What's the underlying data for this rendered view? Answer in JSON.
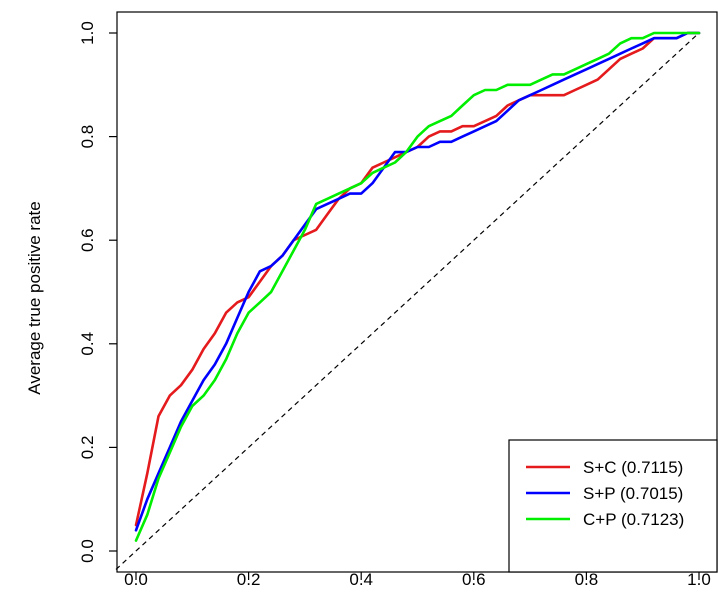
{
  "chart_data": {
    "type": "line",
    "ylabel": "Average true positive rate",
    "xlabel": "",
    "xlim": [
      0,
      1
    ],
    "ylim": [
      0,
      1
    ],
    "x_ticks": [
      0.0,
      0.2,
      0.4,
      0.6,
      0.8,
      1.0
    ],
    "y_ticks": [
      0.0,
      0.2,
      0.4,
      0.6,
      0.8,
      1.0
    ],
    "x_tick_labels": [
      "0.0",
      "0.2",
      "0.4",
      "0.6",
      "0.8",
      "1.0"
    ],
    "y_tick_labels": [
      "0.0",
      "0.2",
      "0.4",
      "0.6",
      "0.8",
      "1.0"
    ],
    "grid": false,
    "legend_position": "bottom-right",
    "reference_line": {
      "style": "dashed",
      "color": "#000000",
      "points": [
        [
          0,
          0
        ],
        [
          1,
          1
        ]
      ]
    },
    "series": [
      {
        "name": "S+C (0.7115)",
        "color": "#e41a1c",
        "points": [
          [
            0.0,
            0.05
          ],
          [
            0.02,
            0.15
          ],
          [
            0.04,
            0.26
          ],
          [
            0.06,
            0.3
          ],
          [
            0.08,
            0.32
          ],
          [
            0.1,
            0.35
          ],
          [
            0.12,
            0.39
          ],
          [
            0.14,
            0.42
          ],
          [
            0.16,
            0.46
          ],
          [
            0.18,
            0.48
          ],
          [
            0.2,
            0.49
          ],
          [
            0.22,
            0.52
          ],
          [
            0.24,
            0.55
          ],
          [
            0.26,
            0.57
          ],
          [
            0.28,
            0.6
          ],
          [
            0.3,
            0.61
          ],
          [
            0.32,
            0.62
          ],
          [
            0.34,
            0.65
          ],
          [
            0.36,
            0.68
          ],
          [
            0.38,
            0.7
          ],
          [
            0.4,
            0.71
          ],
          [
            0.42,
            0.74
          ],
          [
            0.44,
            0.75
          ],
          [
            0.46,
            0.76
          ],
          [
            0.48,
            0.77
          ],
          [
            0.5,
            0.78
          ],
          [
            0.52,
            0.8
          ],
          [
            0.54,
            0.81
          ],
          [
            0.56,
            0.81
          ],
          [
            0.58,
            0.82
          ],
          [
            0.6,
            0.82
          ],
          [
            0.62,
            0.83
          ],
          [
            0.64,
            0.84
          ],
          [
            0.66,
            0.86
          ],
          [
            0.68,
            0.87
          ],
          [
            0.7,
            0.88
          ],
          [
            0.72,
            0.88
          ],
          [
            0.74,
            0.88
          ],
          [
            0.76,
            0.88
          ],
          [
            0.78,
            0.89
          ],
          [
            0.8,
            0.9
          ],
          [
            0.82,
            0.91
          ],
          [
            0.84,
            0.93
          ],
          [
            0.86,
            0.95
          ],
          [
            0.88,
            0.96
          ],
          [
            0.9,
            0.97
          ],
          [
            0.92,
            0.99
          ],
          [
            0.94,
            0.99
          ],
          [
            0.96,
            0.99
          ],
          [
            0.98,
            1.0
          ],
          [
            1.0,
            1.0
          ]
        ]
      },
      {
        "name": "S+P (0.7015)",
        "color": "#0000ff",
        "points": [
          [
            0.0,
            0.04
          ],
          [
            0.02,
            0.1
          ],
          [
            0.04,
            0.15
          ],
          [
            0.06,
            0.2
          ],
          [
            0.08,
            0.25
          ],
          [
            0.1,
            0.29
          ],
          [
            0.12,
            0.33
          ],
          [
            0.14,
            0.36
          ],
          [
            0.16,
            0.4
          ],
          [
            0.18,
            0.45
          ],
          [
            0.2,
            0.5
          ],
          [
            0.22,
            0.54
          ],
          [
            0.24,
            0.55
          ],
          [
            0.26,
            0.57
          ],
          [
            0.28,
            0.6
          ],
          [
            0.3,
            0.63
          ],
          [
            0.32,
            0.66
          ],
          [
            0.34,
            0.67
          ],
          [
            0.36,
            0.68
          ],
          [
            0.38,
            0.69
          ],
          [
            0.4,
            0.69
          ],
          [
            0.42,
            0.71
          ],
          [
            0.44,
            0.74
          ],
          [
            0.46,
            0.77
          ],
          [
            0.48,
            0.77
          ],
          [
            0.5,
            0.78
          ],
          [
            0.52,
            0.78
          ],
          [
            0.54,
            0.79
          ],
          [
            0.56,
            0.79
          ],
          [
            0.58,
            0.8
          ],
          [
            0.6,
            0.81
          ],
          [
            0.62,
            0.82
          ],
          [
            0.64,
            0.83
          ],
          [
            0.66,
            0.85
          ],
          [
            0.68,
            0.87
          ],
          [
            0.7,
            0.88
          ],
          [
            0.72,
            0.89
          ],
          [
            0.74,
            0.9
          ],
          [
            0.76,
            0.91
          ],
          [
            0.78,
            0.92
          ],
          [
            0.8,
            0.93
          ],
          [
            0.82,
            0.94
          ],
          [
            0.84,
            0.95
          ],
          [
            0.86,
            0.96
          ],
          [
            0.88,
            0.97
          ],
          [
            0.9,
            0.98
          ],
          [
            0.92,
            0.99
          ],
          [
            0.94,
            0.99
          ],
          [
            0.96,
            0.99
          ],
          [
            0.98,
            1.0
          ],
          [
            1.0,
            1.0
          ]
        ]
      },
      {
        "name": "C+P (0.7123)",
        "color": "#00ee00",
        "points": [
          [
            0.0,
            0.02
          ],
          [
            0.02,
            0.07
          ],
          [
            0.04,
            0.14
          ],
          [
            0.06,
            0.19
          ],
          [
            0.08,
            0.24
          ],
          [
            0.1,
            0.28
          ],
          [
            0.12,
            0.3
          ],
          [
            0.14,
            0.33
          ],
          [
            0.16,
            0.37
          ],
          [
            0.18,
            0.42
          ],
          [
            0.2,
            0.46
          ],
          [
            0.22,
            0.48
          ],
          [
            0.24,
            0.5
          ],
          [
            0.26,
            0.54
          ],
          [
            0.28,
            0.58
          ],
          [
            0.3,
            0.62
          ],
          [
            0.32,
            0.67
          ],
          [
            0.34,
            0.68
          ],
          [
            0.36,
            0.69
          ],
          [
            0.38,
            0.7
          ],
          [
            0.4,
            0.71
          ],
          [
            0.42,
            0.73
          ],
          [
            0.44,
            0.74
          ],
          [
            0.46,
            0.75
          ],
          [
            0.48,
            0.77
          ],
          [
            0.5,
            0.8
          ],
          [
            0.52,
            0.82
          ],
          [
            0.54,
            0.83
          ],
          [
            0.56,
            0.84
          ],
          [
            0.58,
            0.86
          ],
          [
            0.6,
            0.88
          ],
          [
            0.62,
            0.89
          ],
          [
            0.64,
            0.89
          ],
          [
            0.66,
            0.9
          ],
          [
            0.68,
            0.9
          ],
          [
            0.7,
            0.9
          ],
          [
            0.72,
            0.91
          ],
          [
            0.74,
            0.92
          ],
          [
            0.76,
            0.92
          ],
          [
            0.78,
            0.93
          ],
          [
            0.8,
            0.94
          ],
          [
            0.82,
            0.95
          ],
          [
            0.84,
            0.96
          ],
          [
            0.86,
            0.98
          ],
          [
            0.88,
            0.99
          ],
          [
            0.9,
            0.99
          ],
          [
            0.92,
            1.0
          ],
          [
            0.94,
            1.0
          ],
          [
            0.96,
            1.0
          ],
          [
            0.98,
            1.0
          ],
          [
            1.0,
            1.0
          ]
        ]
      }
    ]
  }
}
